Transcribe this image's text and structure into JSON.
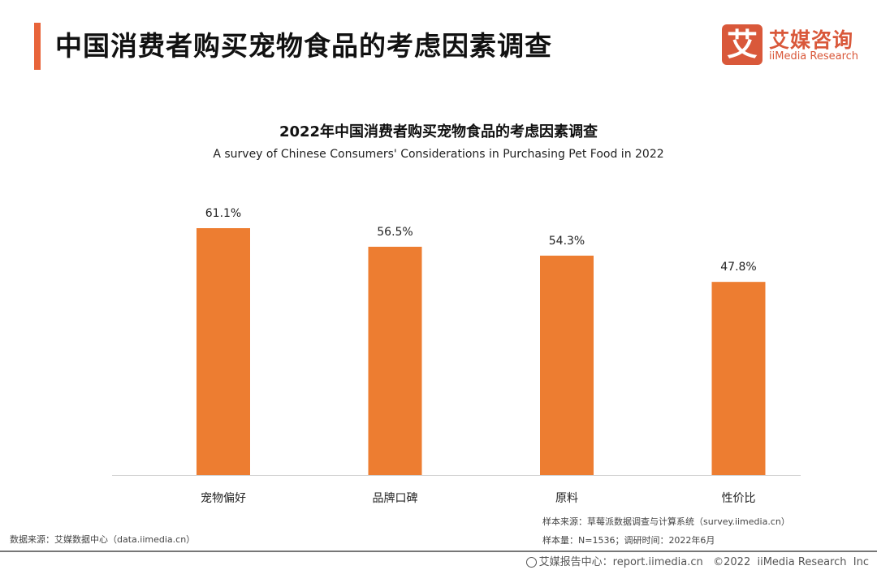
{
  "header": {
    "title": "中国消费者购买宠物食品的考虑因素调查",
    "accent_color": "#e8643a"
  },
  "logo": {
    "mark": "艾",
    "name_cn": "艾媒咨询",
    "name_en": "iiMedia Research",
    "color": "#d9583a"
  },
  "chart_data": {
    "type": "bar",
    "title": "2022年中国消费者购买宠物食品的考虑因素调查",
    "subtitle": "A survey of Chinese Consumers' Considerations in Purchasing Pet Food in 2022",
    "categories": [
      "宠物偏好",
      "品牌口碑",
      "原料",
      "性价比"
    ],
    "values": [
      61.1,
      56.5,
      54.3,
      47.8
    ],
    "data_labels": [
      "61.1%",
      "56.5%",
      "54.3%",
      "47.8%"
    ],
    "unit": "%",
    "bar_color": "#ed7d31",
    "ylim": [
      0,
      70
    ],
    "grid": false,
    "legend": "none"
  },
  "sources": {
    "data_source": "数据来源：艾媒数据中心（data.iimedia.cn）",
    "sample_source": "样本来源：草莓派数据调查与计算系统（survey.iimedia.cn）",
    "sample_info": "样本量：N=1536；调研时间：2022年6月"
  },
  "footer": {
    "icon": "globe-icon",
    "text": "艾媒报告中心：report.iimedia.cn   ©2022  iiMedia Research  Inc"
  }
}
